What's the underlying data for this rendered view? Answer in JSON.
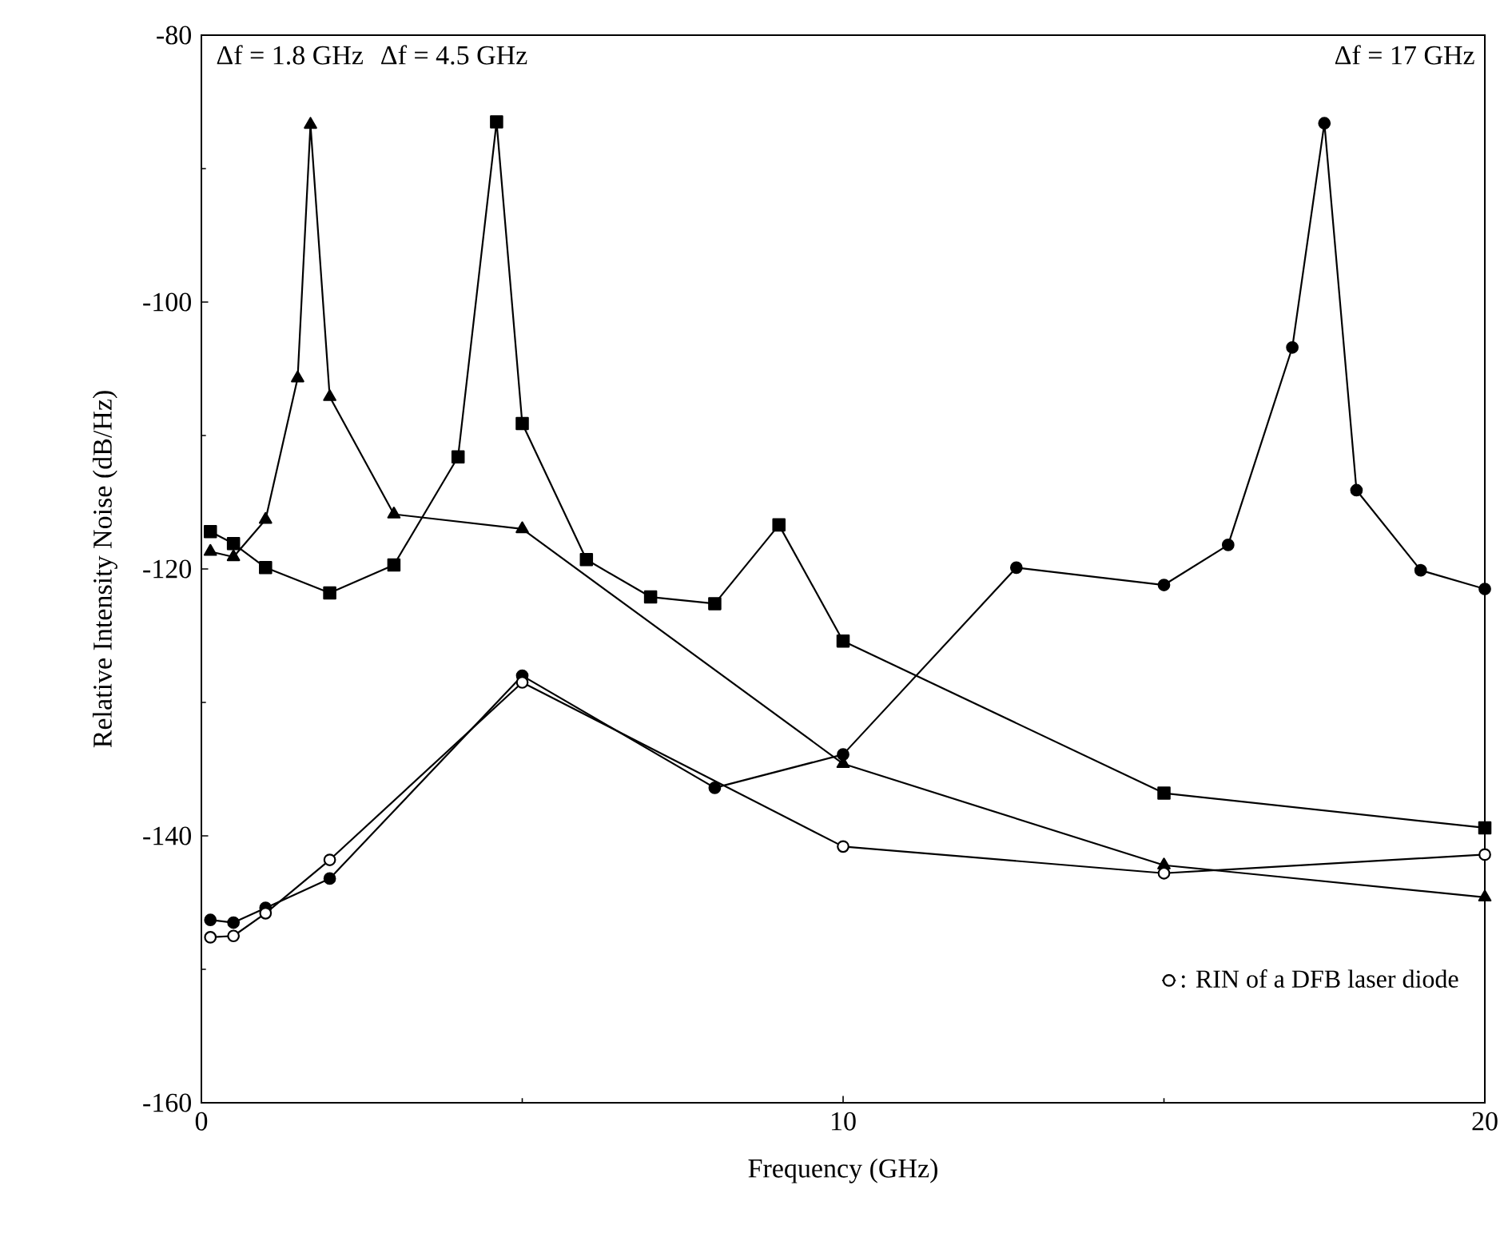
{
  "chart_data": {
    "type": "line",
    "xlabel": "Frequency  (GHz)",
    "ylabel": "Relative Intensity Noise  (dB/Hz)",
    "xlim": [
      0,
      20
    ],
    "ylim": [
      -160,
      -80
    ],
    "xticks": [
      0,
      10,
      20
    ],
    "yticks": [
      -160,
      -140,
      -120,
      -100,
      -80
    ],
    "grid": false,
    "legend": "bottom right",
    "line_style": "solid",
    "series": [
      {
        "color": "#000000",
        "marker": "triangle",
        "x": [
          0.14,
          0.5,
          1,
          1.5,
          1.7,
          2,
          3,
          5,
          10,
          15,
          20
        ],
        "values": [
          -118.7,
          -119.1,
          -116.3,
          -105.7,
          -86.7,
          -107.1,
          -115.9,
          -117,
          -134.6,
          -142.2,
          -144.6
        ]
      },
      {
        "color": "#000000",
        "marker": "square",
        "x": [
          0.14,
          0.5,
          1,
          2,
          3,
          4,
          4.6,
          5,
          6,
          7,
          8,
          9,
          10,
          15,
          20
        ],
        "values": [
          -117.2,
          -118.1,
          -119.9,
          -121.8,
          -119.7,
          -111.6,
          -86.5,
          -109.1,
          -119.3,
          -122.1,
          -122.6,
          -116.7,
          -125.4,
          -136.8,
          -139.4
        ]
      },
      {
        "color": "#000000",
        "marker": "circle",
        "x": [
          0.14,
          0.5,
          1,
          2,
          5,
          8,
          10,
          12.7,
          15,
          16,
          17,
          17.5,
          18,
          19,
          20
        ],
        "values": [
          -146.3,
          -146.5,
          -145.4,
          -143.2,
          -128,
          -136.4,
          -133.9,
          -119.9,
          -121.2,
          -118.2,
          -103.4,
          -86.6,
          -114.1,
          -120.1,
          -121.5
        ]
      },
      {
        "name": ": RIN of a DFB laser diode",
        "color": "#000000",
        "marker": "circle",
        "x": [
          0.14,
          0.5,
          1,
          2,
          5,
          10,
          15,
          20
        ],
        "values": [
          -147.6,
          -147.5,
          -145.8,
          -141.8,
          -128.5,
          -140.8,
          -142.8,
          -141.4
        ]
      }
    ],
    "annotations": [
      "Δf = 1.8 GHz",
      "Δf = 4.5 GHz",
      "Δf = 17 GHz"
    ]
  }
}
